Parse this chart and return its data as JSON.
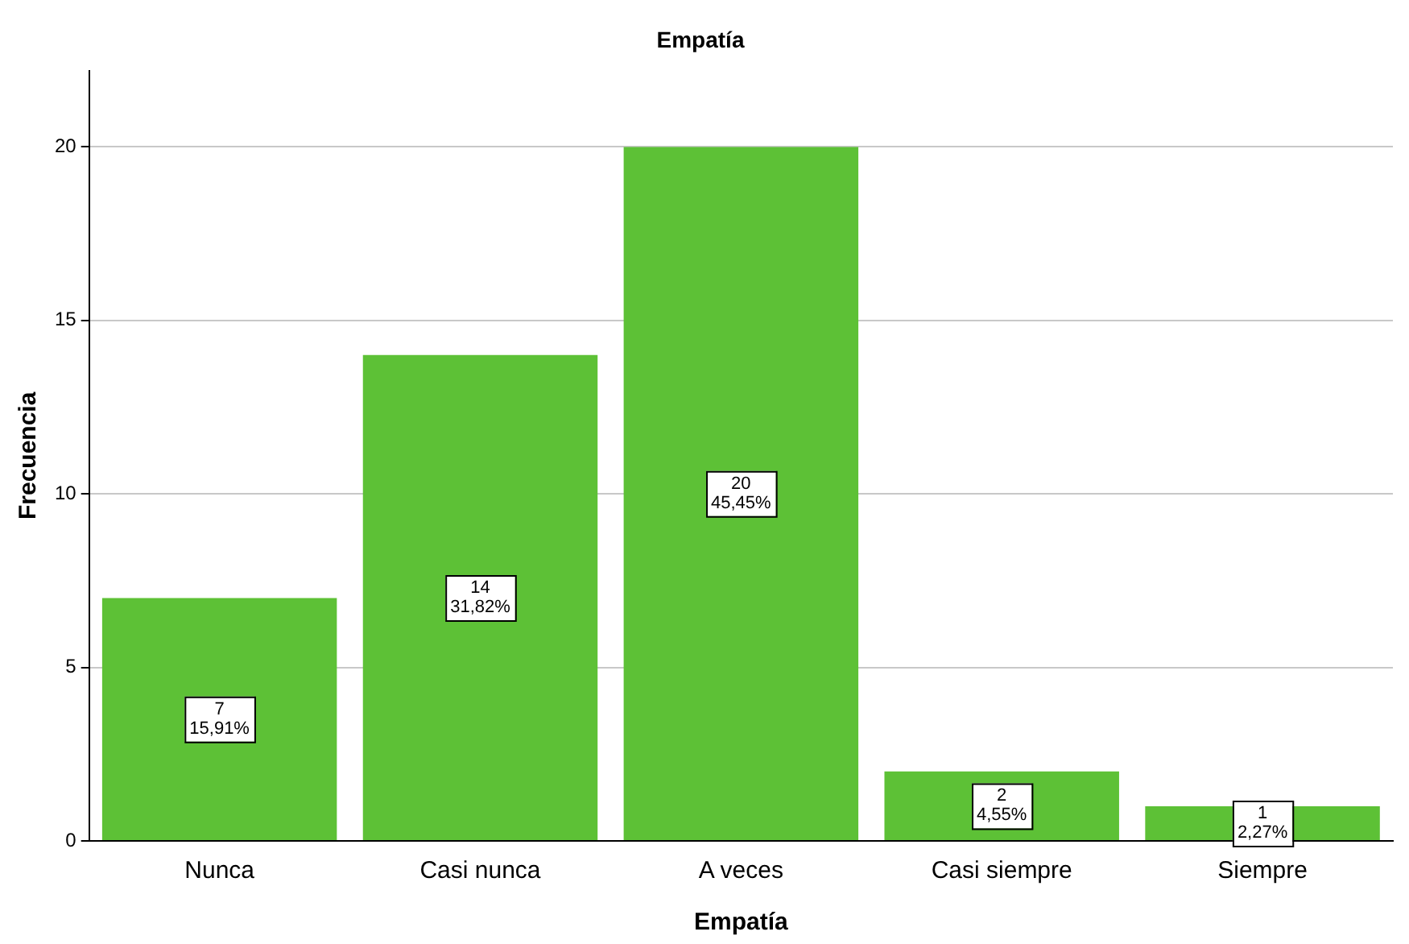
{
  "chart_data": {
    "type": "bar",
    "title": "Empatía",
    "xlabel": "Empatía",
    "ylabel": "Frecuencia",
    "categories": [
      "Nunca",
      "Casi nunca",
      "A veces",
      "Casi siempre",
      "Siempre"
    ],
    "values": [
      7,
      14,
      20,
      2,
      1
    ],
    "value_labels": [
      "7\n15,91%",
      "14\n31,82%",
      "20\n45,45%",
      "2\n4,55%",
      "1\n2,27%"
    ],
    "color": "#5dc136",
    "ylim": [
      0,
      22.2
    ],
    "yticks": [
      0,
      5,
      10,
      15,
      20
    ],
    "grid": "y",
    "legend": false
  }
}
